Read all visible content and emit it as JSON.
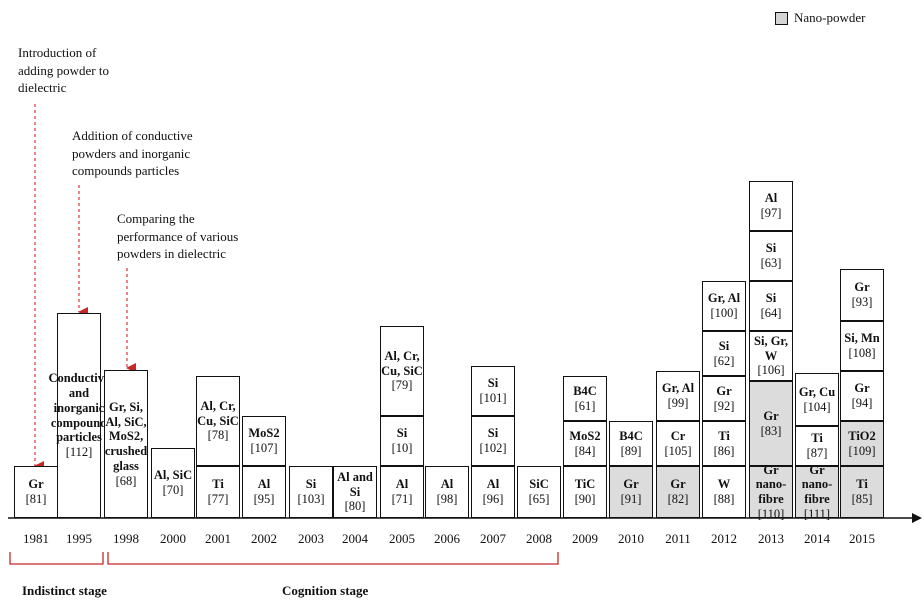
{
  "legend": {
    "label": "Nano-powder"
  },
  "annotations": [
    {
      "text": "Introduction of adding powder to dielectric",
      "year": "1981"
    },
    {
      "text": "Addition of conductive powders and inorganic compounds particles",
      "year": "1995"
    },
    {
      "text": "Comparing the performance of various powders in dielectric",
      "year": "1998"
    }
  ],
  "stages": [
    {
      "label": "Indistinct stage",
      "from": "1981",
      "to": "1995"
    },
    {
      "label": "Cognition stage",
      "from": "1998",
      "to": "2008"
    }
  ],
  "columns": [
    {
      "year": "1981",
      "items": [
        {
          "name": "Gr",
          "ref": "[81]"
        }
      ]
    },
    {
      "year": "1995",
      "items": [
        {
          "name": "Conductive and inorganic compound particles",
          "ref": "[112]"
        }
      ]
    },
    {
      "year": "1998",
      "items": [
        {
          "name": "Gr, Si, Al, SiC, MoS2, crushed glass",
          "ref": "[68]"
        }
      ]
    },
    {
      "year": "2000",
      "items": [
        {
          "name": "Al, SiC",
          "ref": "[70]"
        }
      ]
    },
    {
      "year": "2001",
      "items": [
        {
          "name": "Ti",
          "ref": "[77]"
        },
        {
          "name": "Al, Cr, Cu, SiC",
          "ref": "[78]"
        }
      ]
    },
    {
      "year": "2002",
      "items": [
        {
          "name": "Al",
          "ref": "[95]"
        },
        {
          "name": "MoS2",
          "ref": "[107]"
        }
      ]
    },
    {
      "year": "2003",
      "items": [
        {
          "name": "Si",
          "ref": "[103]"
        }
      ]
    },
    {
      "year": "2004",
      "items": [
        {
          "name": "Al and Si",
          "ref": "[80]"
        }
      ]
    },
    {
      "year": "2005",
      "items": [
        {
          "name": "Al",
          "ref": "[71]"
        },
        {
          "name": "Si",
          "ref": "[10]"
        },
        {
          "name": "Al, Cr, Cu, SiC",
          "ref": "[79]"
        }
      ]
    },
    {
      "year": "2006",
      "items": [
        {
          "name": "Al",
          "ref": "[98]"
        }
      ]
    },
    {
      "year": "2007",
      "items": [
        {
          "name": "Al",
          "ref": "[96]"
        },
        {
          "name": "Si",
          "ref": "[102]"
        },
        {
          "name": "Si",
          "ref": "[101]"
        }
      ]
    },
    {
      "year": "2008",
      "items": [
        {
          "name": "SiC",
          "ref": "[65]"
        }
      ]
    },
    {
      "year": "2009",
      "items": [
        {
          "name": "TiC",
          "ref": "[90]"
        },
        {
          "name": "MoS2",
          "ref": "[84]"
        },
        {
          "name": "B4C",
          "ref": "[61]"
        }
      ]
    },
    {
      "year": "2010",
      "items": [
        {
          "name": "Gr",
          "ref": "[91]",
          "nano": true
        },
        {
          "name": "B4C",
          "ref": "[89]"
        }
      ]
    },
    {
      "year": "2011",
      "items": [
        {
          "name": "Gr",
          "ref": "[82]",
          "nano": true
        },
        {
          "name": "Cr",
          "ref": "[105]"
        },
        {
          "name": "Gr, Al",
          "ref": "[99]"
        }
      ]
    },
    {
      "year": "2012",
      "items": [
        {
          "name": "W",
          "ref": "[88]"
        },
        {
          "name": "Ti",
          "ref": "[86]"
        },
        {
          "name": "Gr",
          "ref": "[92]"
        },
        {
          "name": "Si",
          "ref": "[62]"
        },
        {
          "name": "Gr, Al",
          "ref": "[100]"
        }
      ]
    },
    {
      "year": "2013",
      "items": [
        {
          "name": "Gr nano-fibre",
          "ref": "[110]",
          "nano": true
        },
        {
          "name": "Gr",
          "ref": "[83]",
          "nano": true
        },
        {
          "name": "Si, Gr, W",
          "ref": "[106]"
        },
        {
          "name": "Si",
          "ref": "[64]"
        },
        {
          "name": "Si",
          "ref": "[63]"
        },
        {
          "name": "Al",
          "ref": "[97]"
        }
      ]
    },
    {
      "year": "2014",
      "items": [
        {
          "name": "Gr nano-fibre",
          "ref": "[111]",
          "nano": true
        },
        {
          "name": "Ti",
          "ref": "[87]"
        },
        {
          "name": "Gr, Cu",
          "ref": "[104]"
        }
      ]
    },
    {
      "year": "2015",
      "items": [
        {
          "name": "Ti",
          "ref": "[85]",
          "nano": true
        },
        {
          "name": "TiO2",
          "ref": "[109]",
          "nano": true
        },
        {
          "name": "Gr",
          "ref": "[94]"
        },
        {
          "name": "Si, Mn",
          "ref": "[108]"
        },
        {
          "name": "Gr",
          "ref": "[93]"
        }
      ]
    }
  ]
}
